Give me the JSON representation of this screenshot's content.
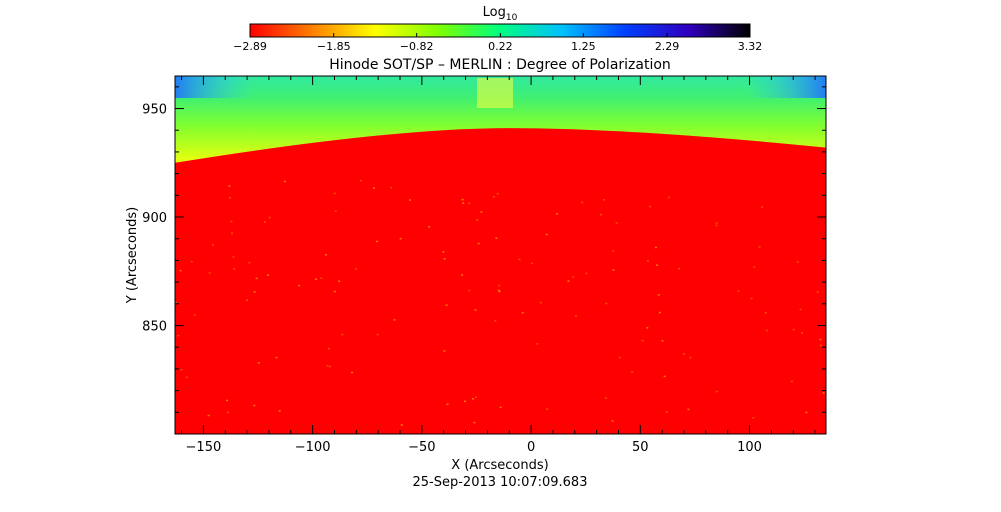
{
  "chart_data": {
    "type": "heatmap",
    "title": "Hinode SOT/SP – MERLIN : Degree of Polarization",
    "xlabel": "X (Arcseconds)",
    "ylabel": "Y (Arcseconds)",
    "xlim": [
      -163,
      135
    ],
    "ylim": [
      800,
      965
    ],
    "x_ticks": [
      -150,
      -100,
      -50,
      0,
      50,
      100
    ],
    "x_tick_labels": [
      "−150",
      "−100",
      "−50",
      "0",
      "50",
      "100"
    ],
    "y_ticks": [
      850,
      900,
      950
    ],
    "y_tick_labels": [
      "850",
      "900",
      "950"
    ],
    "timestamp": "25-Sep-2013 10:07:09.683",
    "colorbar": {
      "label_main": "Log",
      "label_sub": "10",
      "min": -2.89,
      "max": 3.32,
      "ticks": [
        -2.89,
        -1.85,
        -0.82,
        0.22,
        1.25,
        2.29,
        3.32
      ],
      "tick_labels": [
        "−2.89",
        "−1.85",
        "−0.82",
        "0.22",
        "1.25",
        "2.29",
        "3.32"
      ],
      "colors": [
        "#ff0000",
        "#ff8000",
        "#ffff00",
        "#80ff00",
        "#00ff80",
        "#00c0ff",
        "#0040ff",
        "#3000c0",
        "#000000"
      ]
    },
    "limb": {
      "center_x": -10,
      "center_y": 941,
      "left_y": 925,
      "right_y": 932
    }
  }
}
